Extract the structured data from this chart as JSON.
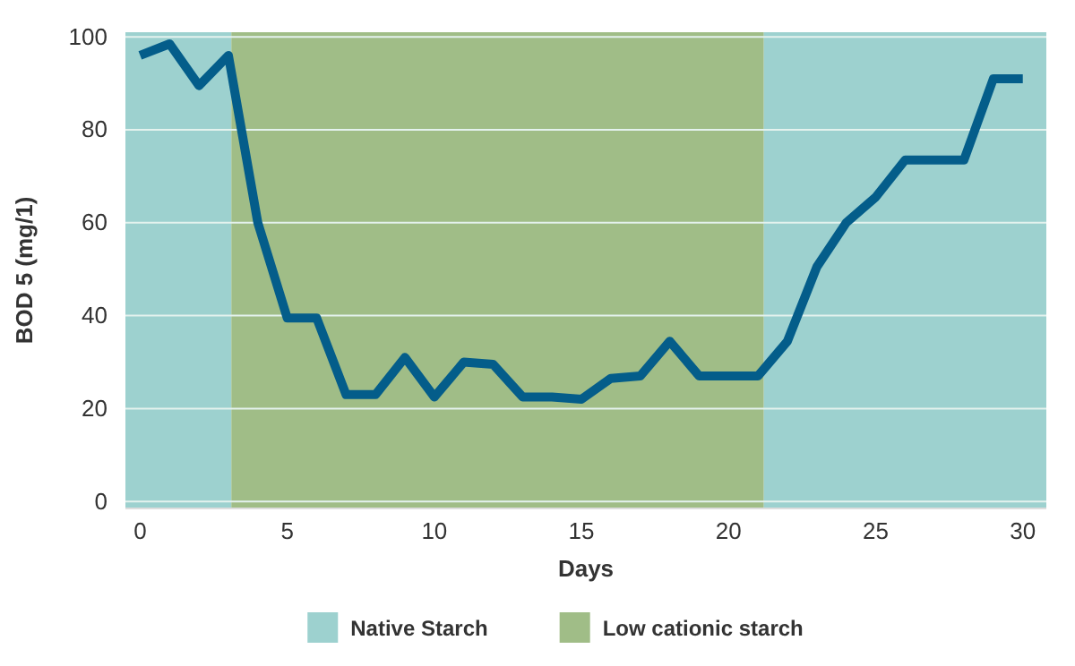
{
  "chart_data": {
    "type": "line",
    "xlabel": "Days",
    "ylabel": "BOD 5 (mg/1)",
    "x": [
      0,
      1,
      2,
      3,
      4,
      5,
      6,
      7,
      8,
      9,
      10,
      11,
      12,
      13,
      14,
      15,
      16,
      17,
      18,
      19,
      20,
      21,
      22,
      23,
      24,
      25,
      26,
      27,
      28,
      29,
      30
    ],
    "series": [
      {
        "color": "#045d8a",
        "values": [
          96,
          98.5,
          89.5,
          96,
          60,
          39.5,
          39.5,
          23,
          23,
          31,
          22.5,
          30,
          29.5,
          22.5,
          22.5,
          22,
          26.5,
          27,
          34.5,
          27,
          27,
          27,
          34.5,
          50.5,
          60,
          65.5,
          73.5,
          73.5,
          73.5,
          91,
          91
        ]
      }
    ],
    "xlim": [
      -0.5,
      30.8
    ],
    "ylim": [
      -1.5,
      101
    ],
    "xticks": [
      0,
      5,
      10,
      15,
      20,
      25,
      30
    ],
    "yticks": [
      0,
      20,
      40,
      60,
      80,
      100
    ],
    "grid": "y",
    "legend": "bottom",
    "line_style": "solid",
    "marker": "none",
    "bands": [
      {
        "axis": "x",
        "from": -0.5,
        "to": 3.1,
        "label": "Native Starch",
        "color": "#9dd1cf"
      },
      {
        "axis": "x",
        "from": 3.1,
        "to": 21.2,
        "label": "Low cationic starch",
        "color": "#a0bd87"
      },
      {
        "axis": "x",
        "from": 21.2,
        "to": 30.8,
        "color": "#9dd1cf"
      }
    ]
  }
}
